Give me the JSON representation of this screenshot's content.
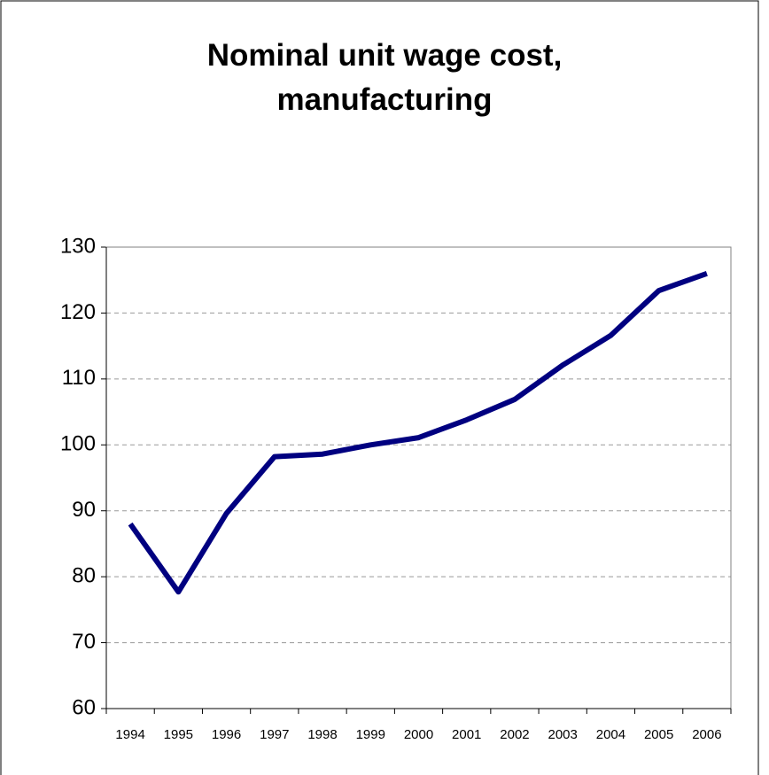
{
  "chart_data": {
    "type": "line",
    "title": "Nominal unit wage cost, manufacturing",
    "categories": [
      "1994",
      "1995",
      "1996",
      "1997",
      "1998",
      "1999",
      "2000",
      "2001",
      "2002",
      "2003",
      "2004",
      "2005",
      "2006"
    ],
    "values": [
      88,
      77.7,
      89.6,
      98.2,
      98.6,
      100.0,
      101.1,
      103.8,
      106.9,
      112.1,
      116.6,
      123.4,
      126.0
    ],
    "color": "#000080",
    "ylim": [
      60,
      130
    ],
    "yticks": [
      60,
      70,
      80,
      90,
      100,
      110,
      120,
      130
    ],
    "grid": true
  }
}
